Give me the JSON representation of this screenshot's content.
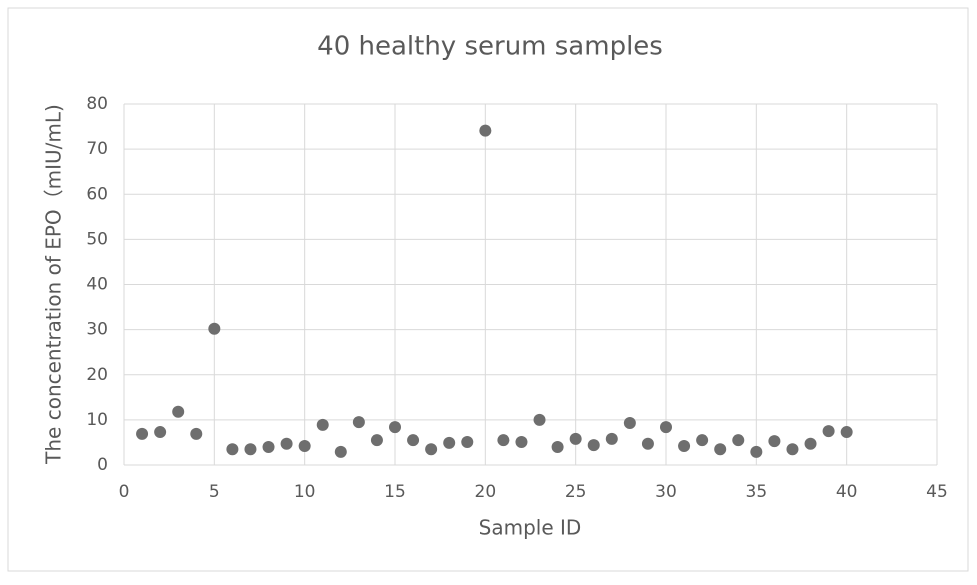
{
  "chart_data": {
    "type": "scatter",
    "title": "40 healthy serum samples",
    "x_label": "Sample ID",
    "y_label": "The concentration of EPO（mIU/mL)",
    "x": [
      1,
      2,
      3,
      4,
      5,
      6,
      7,
      8,
      9,
      10,
      11,
      12,
      13,
      14,
      15,
      16,
      17,
      18,
      19,
      20,
      21,
      22,
      23,
      24,
      25,
      26,
      27,
      28,
      29,
      30,
      31,
      32,
      33,
      34,
      35,
      36,
      37,
      38,
      39,
      40
    ],
    "values": [
      6.9,
      7.3,
      11.8,
      6.9,
      30.2,
      3.5,
      3.5,
      4.0,
      4.7,
      4.2,
      8.9,
      2.9,
      9.5,
      5.5,
      8.4,
      5.5,
      3.5,
      4.9,
      5.1,
      74.1,
      5.5,
      5.1,
      10.0,
      4.0,
      5.8,
      4.4,
      5.8,
      9.3,
      4.7,
      8.4,
      4.2,
      5.5,
      3.5,
      5.5,
      2.9,
      5.3,
      3.5,
      4.7,
      7.5,
      7.3
    ],
    "color": "#6e6e6e",
    "xlim": [
      0,
      45
    ],
    "xticks": [
      0,
      5,
      10,
      15,
      20,
      25,
      30,
      35,
      40,
      45
    ],
    "ylim": [
      0,
      80
    ],
    "yticks": [
      0,
      10,
      20,
      30,
      40,
      50,
      60,
      70,
      80
    ],
    "grid": true
  }
}
